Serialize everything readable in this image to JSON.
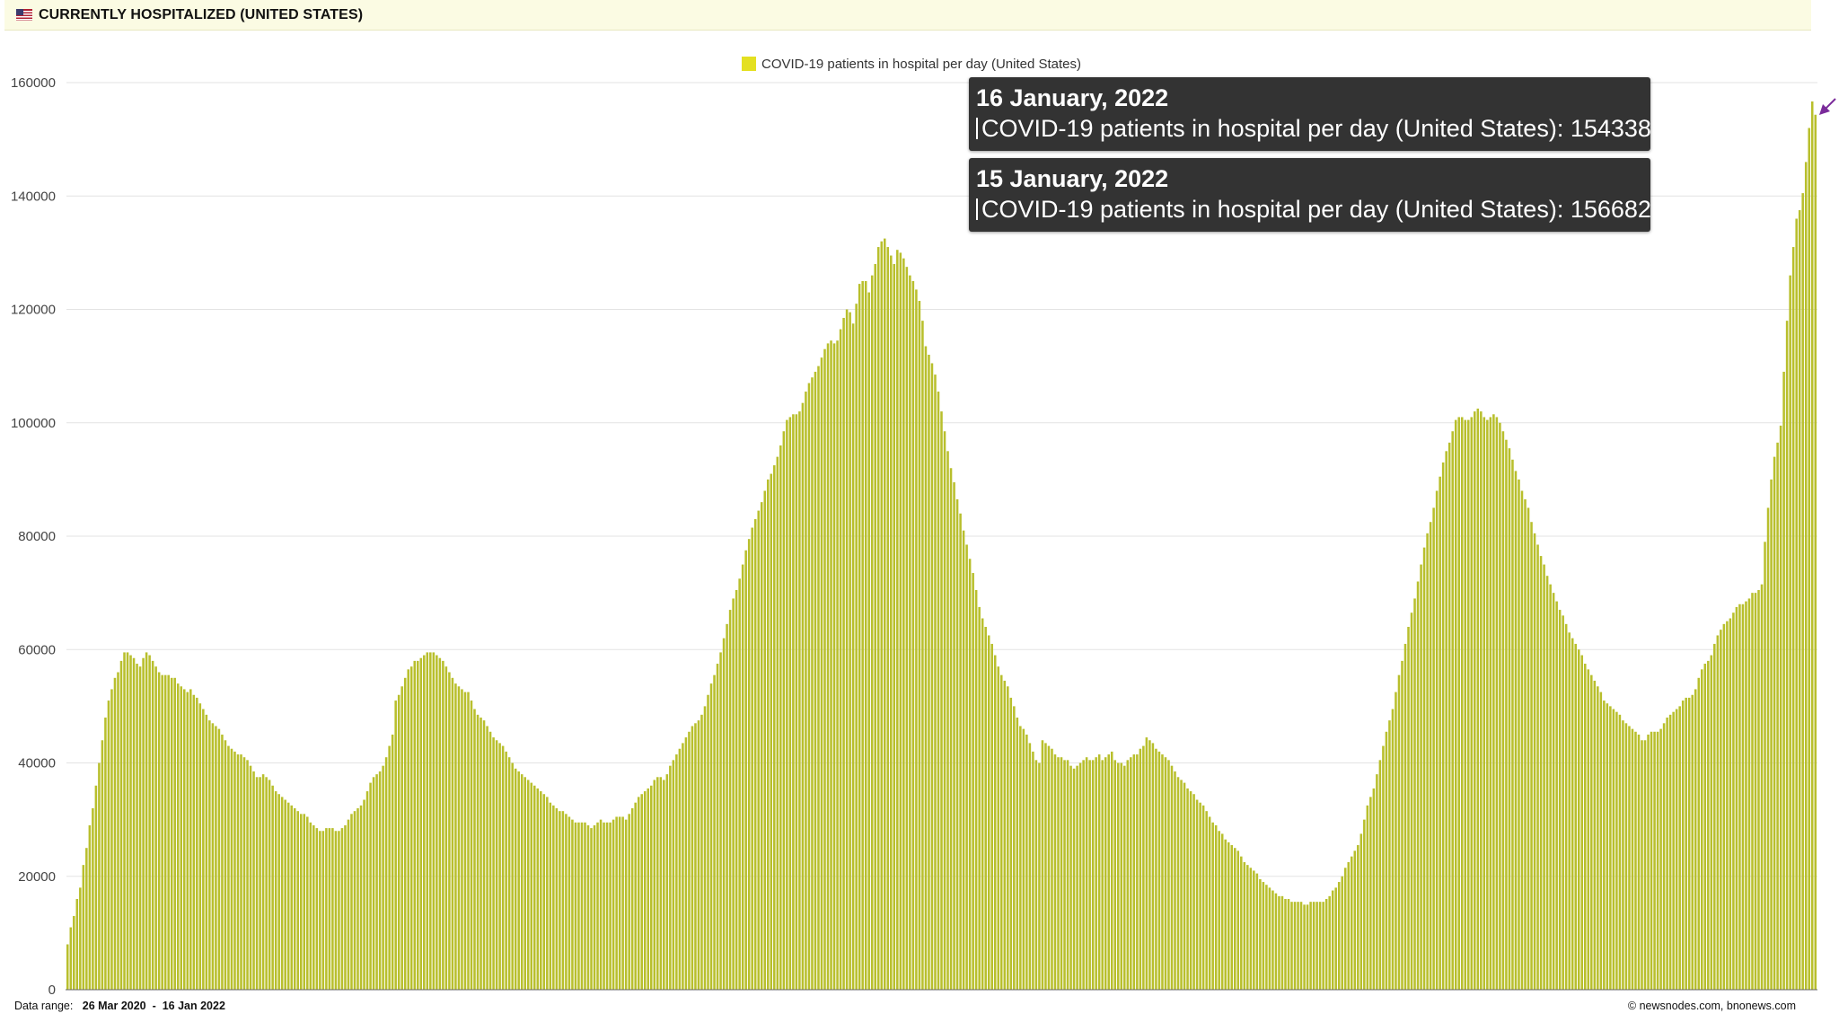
{
  "header": {
    "title": "CURRENTLY HOSPITALIZED (UNITED STATES)",
    "flag_icon": "us-flag-icon"
  },
  "legend": {
    "label": "COVID-19 patients in hospital per day (United States)",
    "color": "#e4e021"
  },
  "tooltips": [
    {
      "date": "16 January, 2022",
      "series": "COVID-19 patients in hospital per day (United States)",
      "value": "154338"
    },
    {
      "date": "15 January, 2022",
      "series": "COVID-19 patients in hospital per day (United States)",
      "value": "156682"
    }
  ],
  "footer": {
    "range_label": "Data range:",
    "range_start": "26 Mar 2020",
    "range_sep": "-",
    "range_end": "16 Jan 2022",
    "credit": "©  newsnodes.com, bnonews.com"
  },
  "chart_data": {
    "type": "bar",
    "series_name": "COVID-19 patients in hospital per day (United States)",
    "x_start": "2020-03-26",
    "x_end": "2022-01-16",
    "ylim": [
      0,
      160000
    ],
    "yticks": [
      0,
      20000,
      40000,
      60000,
      80000,
      100000,
      120000,
      140000,
      160000
    ],
    "grid": true,
    "legend_position": "top-center",
    "bar_color": "#b8bf2c",
    "values": [
      8000,
      11000,
      13000,
      16000,
      18000,
      22000,
      25000,
      29000,
      32000,
      36000,
      40000,
      44000,
      48000,
      51000,
      53000,
      55000,
      56000,
      58000,
      59500,
      59500,
      59000,
      58500,
      57500,
      57000,
      58500,
      59500,
      59000,
      58000,
      57000,
      56000,
      55500,
      55500,
      55500,
      55000,
      55000,
      54000,
      53500,
      53000,
      52500,
      53000,
      52000,
      51500,
      50500,
      49500,
      48500,
      47500,
      47000,
      46500,
      46000,
      45000,
      44000,
      43000,
      42500,
      42000,
      41500,
      41500,
      41000,
      40500,
      39500,
      38500,
      37500,
      37500,
      38000,
      37500,
      37000,
      36000,
      35000,
      34500,
      34000,
      33500,
      33000,
      32500,
      32000,
      31500,
      31000,
      31000,
      30500,
      29500,
      29000,
      28500,
      28000,
      28000,
      28500,
      28500,
      28500,
      28000,
      28000,
      28500,
      29000,
      30000,
      31000,
      31500,
      32000,
      32500,
      33500,
      35000,
      36500,
      37500,
      38000,
      38500,
      39500,
      41000,
      43000,
      45000,
      51000,
      52000,
      53500,
      55000,
      56500,
      57000,
      58000,
      58000,
      58500,
      59000,
      59500,
      59500,
      59500,
      59000,
      58500,
      58000,
      57000,
      56000,
      55000,
      54000,
      53500,
      53000,
      52500,
      52500,
      51000,
      49500,
      48500,
      48000,
      47500,
      46500,
      45500,
      44500,
      44000,
      43500,
      43000,
      42000,
      41000,
      40000,
      39000,
      38500,
      38000,
      37500,
      37000,
      36500,
      36000,
      35500,
      35000,
      34500,
      34000,
      33000,
      32500,
      32000,
      31500,
      31500,
      31000,
      30500,
      30000,
      29500,
      29500,
      29500,
      29500,
      29000,
      28500,
      29000,
      29500,
      30000,
      29500,
      29500,
      29500,
      30000,
      30500,
      30500,
      30500,
      30000,
      31000,
      32000,
      33000,
      34000,
      34500,
      35000,
      35500,
      36000,
      37000,
      37500,
      37500,
      37000,
      38000,
      39500,
      40500,
      41500,
      42500,
      43500,
      44500,
      45500,
      46500,
      47000,
      47500,
      48500,
      50000,
      52000,
      54000,
      55500,
      57500,
      59500,
      62000,
      64500,
      67000,
      69000,
      70500,
      72500,
      75000,
      77500,
      79500,
      81500,
      83000,
      84500,
      86000,
      88000,
      90000,
      91000,
      92500,
      94000,
      96000,
      98500,
      100500,
      101000,
      101500,
      101500,
      102000,
      103500,
      105500,
      107000,
      108000,
      109000,
      110000,
      111500,
      113000,
      114000,
      114500,
      114000,
      114500,
      116500,
      118500,
      120000,
      119500,
      117500,
      121000,
      124500,
      125000,
      125000,
      123000,
      126000,
      128000,
      131000,
      132000,
      132500,
      131000,
      129500,
      128000,
      130500,
      130000,
      129000,
      127500,
      126000,
      125000,
      123500,
      121500,
      118000,
      113500,
      112000,
      110500,
      108500,
      105500,
      102000,
      98500,
      95000,
      92000,
      89500,
      86500,
      84000,
      81000,
      78500,
      76000,
      73500,
      70500,
      67500,
      65500,
      64000,
      62500,
      61000,
      59000,
      57000,
      55500,
      54500,
      53500,
      51500,
      50000,
      48000,
      46500,
      46000,
      45000,
      43500,
      42000,
      40500,
      40000,
      44000,
      43500,
      43000,
      42500,
      41500,
      41000,
      41000,
      40500,
      40500,
      39500,
      39000,
      39500,
      40000,
      40500,
      41000,
      40500,
      40500,
      41000,
      41500,
      40500,
      41000,
      41500,
      42000,
      40500,
      40000,
      40000,
      39500,
      40500,
      41000,
      41500,
      41500,
      42500,
      43000,
      44500,
      44000,
      43500,
      42500,
      42000,
      41500,
      41000,
      40500,
      39500,
      38500,
      37500,
      37000,
      36500,
      35500,
      35000,
      34500,
      33500,
      33000,
      32500,
      31500,
      30500,
      29500,
      29000,
      28000,
      27500,
      26500,
      26000,
      25500,
      25000,
      24500,
      23500,
      22500,
      22000,
      21500,
      21000,
      20500,
      19500,
      19000,
      18500,
      18000,
      17500,
      17000,
      16500,
      16500,
      16000,
      16000,
      15500,
      15500,
      15500,
      15500,
      15000,
      15000,
      15500,
      15500,
      15500,
      15500,
      15500,
      16000,
      16500,
      17500,
      18000,
      19000,
      20000,
      21500,
      22500,
      23500,
      24500,
      25500,
      27500,
      30000,
      32500,
      34000,
      35500,
      38000,
      40500,
      43000,
      45500,
      47500,
      49500,
      52500,
      55500,
      58000,
      61000,
      64000,
      66500,
      69000,
      72000,
      75000,
      78000,
      80500,
      82500,
      85000,
      88000,
      90500,
      93000,
      95000,
      96500,
      98500,
      100500,
      101000,
      101000,
      100500,
      100500,
      101000,
      102000,
      102500,
      102000,
      101000,
      100500,
      101000,
      101500,
      101000,
      100000,
      98500,
      97000,
      95500,
      93500,
      91500,
      90000,
      88000,
      86500,
      85000,
      82500,
      80500,
      78500,
      76500,
      75000,
      73000,
      71500,
      70000,
      68500,
      67000,
      66000,
      64500,
      63000,
      62000,
      61000,
      60000,
      59000,
      57500,
      56500,
      55500,
      54500,
      53500,
      52500,
      51000,
      50500,
      50000,
      49500,
      49000,
      48500,
      47500,
      47000,
      46500,
      46000,
      45500,
      45000,
      44000,
      44000,
      45000,
      45500,
      45500,
      45500,
      46000,
      47000,
      48000,
      48500,
      49000,
      49500,
      50000,
      51000,
      51500,
      51500,
      52000,
      53000,
      55000,
      56500,
      57500,
      58000,
      59000,
      61000,
      62500,
      63500,
      64500,
      65000,
      65500,
      66500,
      67500,
      68000,
      68000,
      68500,
      69000,
      70000,
      70000,
      70500,
      71500,
      79000,
      85000,
      90000,
      94000,
      96500,
      99500,
      109000,
      118000,
      126000,
      131000,
      136000,
      137500,
      140500,
      146000,
      152000,
      156682,
      154338
    ]
  }
}
